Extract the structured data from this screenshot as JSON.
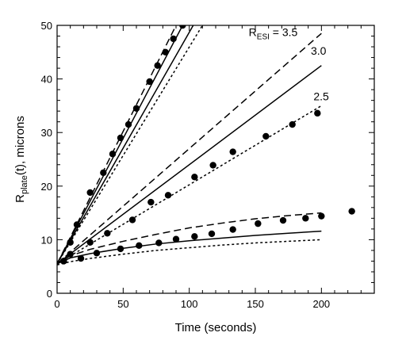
{
  "chart_data": {
    "type": "scatter",
    "title": "",
    "xlabel": "Time (seconds)",
    "ylabel_parts": {
      "main": "R",
      "sub": "plate",
      "tail": "(t), microns"
    },
    "xlim": [
      0,
      240
    ],
    "ylim": [
      0,
      50
    ],
    "xticks": [
      0,
      50,
      100,
      150,
      200
    ],
    "yticks": [
      0,
      10,
      20,
      30,
      40,
      50
    ],
    "x_minor_step": 10,
    "y_minor_step": 2,
    "grid": false,
    "legend": "none",
    "annotations": [
      {
        "id": "resi35",
        "main": "R",
        "sub": "ESI",
        "tail": " = 3.5",
        "x": 145,
        "y": 48
      },
      {
        "id": "resi30",
        "text": "3.0",
        "x": 192,
        "y": 44.5
      },
      {
        "id": "resi25",
        "text": "2.5",
        "x": 194,
        "y": 36
      }
    ],
    "series": [
      {
        "group": "upper",
        "points_style": "dot",
        "points": [
          [
            5,
            6
          ],
          [
            10,
            9.5
          ],
          [
            15,
            12.8
          ],
          [
            25,
            18.8
          ],
          [
            35,
            22.5
          ],
          [
            42,
            26
          ],
          [
            48,
            29
          ],
          [
            54,
            31.5
          ],
          [
            60,
            34.5
          ],
          [
            70,
            39.5
          ],
          [
            76,
            42.5
          ],
          [
            82,
            45
          ],
          [
            88,
            47.5
          ],
          [
            95,
            50
          ]
        ]
      },
      {
        "group": "middle",
        "points_style": "dot",
        "points": [
          [
            5,
            6
          ],
          [
            10,
            7.3
          ],
          [
            25,
            9.5
          ],
          [
            38,
            11.2
          ],
          [
            57,
            13.7
          ],
          [
            71,
            17
          ],
          [
            84,
            18.3
          ],
          [
            104,
            21.7
          ],
          [
            118,
            23.9
          ],
          [
            133,
            26.4
          ],
          [
            158,
            29.3
          ],
          [
            178,
            31.5
          ],
          [
            197,
            33.6
          ]
        ]
      },
      {
        "group": "lower",
        "points_style": "dot",
        "points": [
          [
            5,
            6
          ],
          [
            18,
            6.5
          ],
          [
            30,
            7.5
          ],
          [
            48,
            8.3
          ],
          [
            62,
            8.9
          ],
          [
            77,
            9.4
          ],
          [
            90,
            10.1
          ],
          [
            104,
            10.6
          ],
          [
            117,
            11.1
          ],
          [
            133,
            11.9
          ],
          [
            152,
            13
          ],
          [
            171,
            13.6
          ],
          [
            188,
            14
          ],
          [
            200,
            14.4
          ],
          [
            223,
            15.3
          ]
        ]
      },
      {
        "group": "upper",
        "line_style": "dashed",
        "points": [
          [
            0,
            5.5
          ],
          [
            90,
            50
          ]
        ]
      },
      {
        "group": "upper",
        "line_style": "solid",
        "points": [
          [
            0,
            5.5
          ],
          [
            95,
            50
          ]
        ]
      },
      {
        "group": "upper",
        "line_style": "solid",
        "points": [
          [
            0,
            5.5
          ],
          [
            103,
            50
          ]
        ]
      },
      {
        "group": "upper",
        "line_style": "dotted",
        "points": [
          [
            0,
            5.5
          ],
          [
            110,
            50
          ]
        ]
      },
      {
        "group": "middle",
        "line_style": "dashed",
        "points": [
          [
            0,
            5.5
          ],
          [
            200,
            48.5
          ]
        ]
      },
      {
        "group": "middle",
        "line_style": "solid",
        "points": [
          [
            0,
            5.5
          ],
          [
            200,
            42.5
          ]
        ]
      },
      {
        "group": "middle",
        "line_style": "dotted",
        "points": [
          [
            0,
            5.5
          ],
          [
            200,
            35
          ]
        ]
      },
      {
        "group": "lower",
        "line_style": "dashed",
        "points": [
          [
            0,
            5.5
          ],
          [
            10,
            7
          ],
          [
            25,
            8.2
          ],
          [
            50,
            9.7
          ],
          [
            75,
            11
          ],
          [
            100,
            12.2
          ],
          [
            125,
            13.1
          ],
          [
            150,
            13.9
          ],
          [
            175,
            14.5
          ],
          [
            200,
            15
          ]
        ]
      },
      {
        "group": "lower",
        "line_style": "solid",
        "points": [
          [
            0,
            5.5
          ],
          [
            10,
            6.6
          ],
          [
            25,
            7.4
          ],
          [
            50,
            8.4
          ],
          [
            75,
            9.2
          ],
          [
            100,
            9.8
          ],
          [
            125,
            10.3
          ],
          [
            150,
            10.8
          ],
          [
            175,
            11.2
          ],
          [
            200,
            11.6
          ]
        ]
      },
      {
        "group": "lower",
        "line_style": "dotted",
        "points": [
          [
            0,
            5.3
          ],
          [
            10,
            5.9
          ],
          [
            25,
            6.5
          ],
          [
            50,
            7.3
          ],
          [
            75,
            8
          ],
          [
            100,
            8.5
          ],
          [
            125,
            9
          ],
          [
            150,
            9.4
          ],
          [
            175,
            9.7
          ],
          [
            200,
            10
          ]
        ]
      }
    ]
  }
}
